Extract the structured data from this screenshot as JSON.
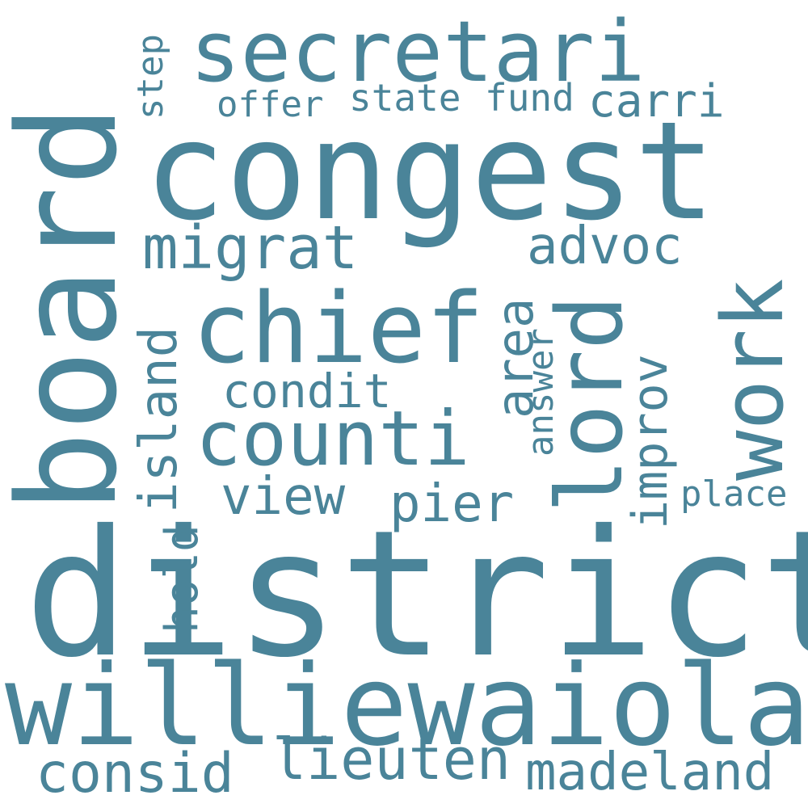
{
  "colors": {
    "background": "#ffffff",
    "word": "#4a8499"
  },
  "words": [
    {
      "id": "district",
      "text": "district"
    },
    {
      "id": "congest",
      "text": "congest"
    },
    {
      "id": "board",
      "text": "board"
    },
    {
      "id": "williewaiola",
      "text": "williewaiola"
    },
    {
      "id": "secretari",
      "text": "secretari"
    },
    {
      "id": "chief",
      "text": "chief"
    },
    {
      "id": "counti",
      "text": "counti"
    },
    {
      "id": "lord",
      "text": "lord"
    },
    {
      "id": "work",
      "text": "work"
    },
    {
      "id": "migrat",
      "text": "migrat"
    },
    {
      "id": "advoc",
      "text": "advoc"
    },
    {
      "id": "lieuten",
      "text": "lieuten"
    },
    {
      "id": "madeland",
      "text": "madeland"
    },
    {
      "id": "consid",
      "text": "consid"
    },
    {
      "id": "view",
      "text": "view"
    },
    {
      "id": "pier",
      "text": "pier"
    },
    {
      "id": "condit",
      "text": "condit"
    },
    {
      "id": "island",
      "text": "island"
    },
    {
      "id": "area",
      "text": "area"
    },
    {
      "id": "improv",
      "text": "improv"
    },
    {
      "id": "place",
      "text": "place"
    },
    {
      "id": "hold",
      "text": "hold"
    },
    {
      "id": "answer",
      "text": "answer"
    },
    {
      "id": "offer",
      "text": "offer"
    },
    {
      "id": "state",
      "text": "state"
    },
    {
      "id": "fund",
      "text": "fund"
    },
    {
      "id": "carri",
      "text": "carri"
    },
    {
      "id": "step",
      "text": "step"
    }
  ]
}
